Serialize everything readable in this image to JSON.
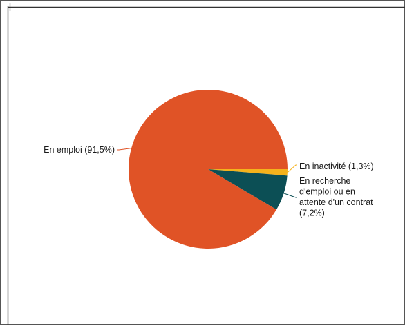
{
  "chart_data": {
    "type": "pie",
    "title": "",
    "slices": [
      {
        "label_lines": [
          "En inactivité (1,3%)"
        ],
        "value": 1.3,
        "color": "#f5b21c"
      },
      {
        "label_lines": [
          "En recherche",
          "d'emploi ou en",
          "attente d'un contrat",
          "(7,2%)"
        ],
        "value": 7.2,
        "color": "#0c4f55"
      },
      {
        "label_lines": [
          "En emploi (91,5%)"
        ],
        "value": 91.5,
        "color": "#e05326"
      }
    ]
  }
}
